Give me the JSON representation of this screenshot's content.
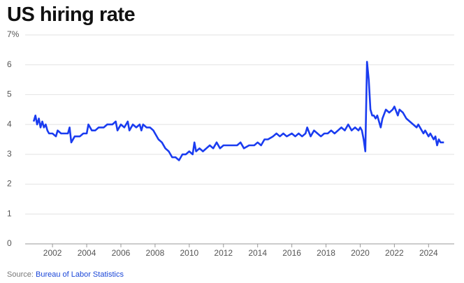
{
  "chart_data": {
    "type": "line",
    "title": "US hiring rate",
    "source_label": "Source:",
    "source": "Bureau of Labor Statistics",
    "x": [
      2000.9,
      2001.0,
      2001.1,
      2001.2,
      2001.3,
      2001.4,
      2001.5,
      2001.6,
      2001.7,
      2001.8,
      2002.0,
      2002.2,
      2002.3,
      2002.5,
      2002.7,
      2002.9,
      2003.0,
      2003.1,
      2003.3,
      2003.6,
      2003.8,
      2004.0,
      2004.1,
      2004.3,
      2004.5,
      2004.7,
      2005.0,
      2005.2,
      2005.5,
      2005.7,
      2005.8,
      2006.0,
      2006.2,
      2006.4,
      2006.5,
      2006.7,
      2006.9,
      2007.1,
      2007.2,
      2007.3,
      2007.5,
      2007.7,
      2007.9,
      2008.0,
      2008.2,
      2008.4,
      2008.6,
      2008.8,
      2009.0,
      2009.2,
      2009.4,
      2009.6,
      2009.8,
      2010.0,
      2010.2,
      2010.3,
      2010.4,
      2010.6,
      2010.8,
      2011.0,
      2011.2,
      2011.4,
      2011.6,
      2011.8,
      2012.0,
      2012.4,
      2012.8,
      2013.0,
      2013.2,
      2013.5,
      2013.8,
      2014.0,
      2014.2,
      2014.4,
      2014.6,
      2014.9,
      2015.1,
      2015.3,
      2015.5,
      2015.7,
      2016.0,
      2016.2,
      2016.4,
      2016.6,
      2016.8,
      2016.9,
      2017.1,
      2017.3,
      2017.5,
      2017.7,
      2017.9,
      2018.1,
      2018.3,
      2018.5,
      2018.7,
      2018.9,
      2019.1,
      2019.3,
      2019.5,
      2019.7,
      2019.9,
      2020.0,
      2020.1,
      2020.2,
      2020.3,
      2020.4,
      2020.5,
      2020.6,
      2020.7,
      2020.8,
      2020.9,
      2021.0,
      2021.2,
      2021.3,
      2021.5,
      2021.7,
      2021.9,
      2022.0,
      2022.2,
      2022.3,
      2022.5,
      2022.7,
      2022.9,
      2023.1,
      2023.3,
      2023.4,
      2023.6,
      2023.7,
      2023.8,
      2024.0,
      2024.1,
      2024.3,
      2024.4,
      2024.5,
      2024.6,
      2024.7,
      2024.9
    ],
    "series": [
      {
        "name": "Hiring rate",
        "color": "#1a3cf0",
        "values": [
          4.1,
          4.3,
          4.0,
          4.2,
          3.9,
          4.1,
          3.9,
          4.0,
          3.8,
          3.7,
          3.7,
          3.6,
          3.8,
          3.7,
          3.7,
          3.7,
          3.9,
          3.4,
          3.6,
          3.6,
          3.7,
          3.7,
          4.0,
          3.8,
          3.8,
          3.9,
          3.9,
          4.0,
          4.0,
          4.1,
          3.8,
          4.0,
          3.9,
          4.1,
          3.8,
          4.0,
          3.9,
          4.0,
          3.8,
          4.0,
          3.9,
          3.9,
          3.8,
          3.7,
          3.5,
          3.4,
          3.2,
          3.1,
          2.9,
          2.9,
          2.8,
          3.0,
          3.0,
          3.1,
          3.0,
          3.4,
          3.1,
          3.2,
          3.1,
          3.2,
          3.3,
          3.2,
          3.4,
          3.2,
          3.3,
          3.3,
          3.3,
          3.4,
          3.2,
          3.3,
          3.3,
          3.4,
          3.3,
          3.5,
          3.5,
          3.6,
          3.7,
          3.6,
          3.7,
          3.6,
          3.7,
          3.6,
          3.7,
          3.6,
          3.7,
          3.9,
          3.6,
          3.8,
          3.7,
          3.6,
          3.7,
          3.7,
          3.8,
          3.7,
          3.8,
          3.9,
          3.8,
          4.0,
          3.8,
          3.9,
          3.8,
          3.9,
          3.8,
          3.5,
          3.1,
          6.1,
          5.5,
          4.5,
          4.3,
          4.3,
          4.2,
          4.3,
          3.9,
          4.2,
          4.5,
          4.4,
          4.5,
          4.6,
          4.3,
          4.5,
          4.4,
          4.2,
          4.1,
          4.0,
          3.9,
          4.0,
          3.8,
          3.7,
          3.8,
          3.6,
          3.7,
          3.5,
          3.6,
          3.3,
          3.5,
          3.4,
          3.4
        ]
      }
    ],
    "xlim": [
      2000.4,
      2025.5
    ],
    "xticks": [
      2002,
      2004,
      2006,
      2008,
      2010,
      2012,
      2014,
      2016,
      2018,
      2020,
      2022,
      2024
    ],
    "ylim": [
      0,
      7
    ],
    "yticks": [
      0,
      1,
      2,
      3,
      4,
      5,
      6,
      {
        "value": 7,
        "label": "7%"
      }
    ],
    "grid": true
  }
}
